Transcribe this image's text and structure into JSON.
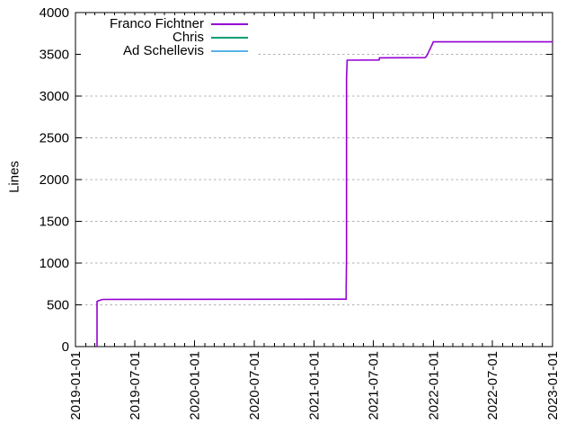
{
  "chart_data": {
    "type": "line",
    "title": "",
    "xlabel": "",
    "ylabel": "Lines",
    "x_axis": {
      "start": "2019-01-01",
      "end": "2023-01-01",
      "major_tick_labels": [
        "2019-01-01",
        "2019-07-01",
        "2020-01-01",
        "2020-07-01",
        "2021-01-01",
        "2021-07-01",
        "2022-01-01",
        "2022-07-01",
        "2023-01-01"
      ],
      "minor_tick_interval": "1 month",
      "label_rotation_deg": -90
    },
    "y_axis": {
      "min": 0,
      "max": 4000,
      "tick_step": 500,
      "tick_labels": [
        "0",
        "500",
        "1000",
        "1500",
        "2000",
        "2500",
        "3000",
        "3500",
        "4000"
      ]
    },
    "grid": {
      "horizontal_dashed": true,
      "color": "#b0b0b0"
    },
    "legend": {
      "position": "top-left-inside",
      "entries": [
        {
          "label": "Franco Fichtner",
          "color": "#9400d3"
        },
        {
          "label": "Chris",
          "color": "#009e73"
        },
        {
          "label": "Ad Schellevis",
          "color": "#56b4e9"
        }
      ]
    },
    "series": [
      {
        "name": "Franco Fichtner",
        "color": "#9400d3",
        "points": [
          [
            "2019-03-08",
            0
          ],
          [
            "2019-03-08",
            540
          ],
          [
            "2019-03-12",
            548
          ],
          [
            "2019-03-25",
            565
          ],
          [
            "2021-04-09",
            568
          ],
          [
            "2021-04-09",
            700
          ],
          [
            "2021-04-10",
            1050
          ],
          [
            "2021-04-10",
            3220
          ],
          [
            "2021-04-12",
            3430
          ],
          [
            "2021-07-19",
            3432
          ],
          [
            "2021-07-20",
            3458
          ],
          [
            "2021-12-07",
            3460
          ],
          [
            "2021-12-12",
            3485
          ],
          [
            "2021-12-17",
            3525
          ],
          [
            "2021-12-22",
            3565
          ],
          [
            "2021-12-27",
            3605
          ],
          [
            "2022-01-01",
            3650
          ],
          [
            "2023-01-01",
            3650
          ]
        ]
      },
      {
        "name": "Chris",
        "color": "#009e73",
        "points": []
      },
      {
        "name": "Ad Schellevis",
        "color": "#56b4e9",
        "points": []
      }
    ]
  }
}
